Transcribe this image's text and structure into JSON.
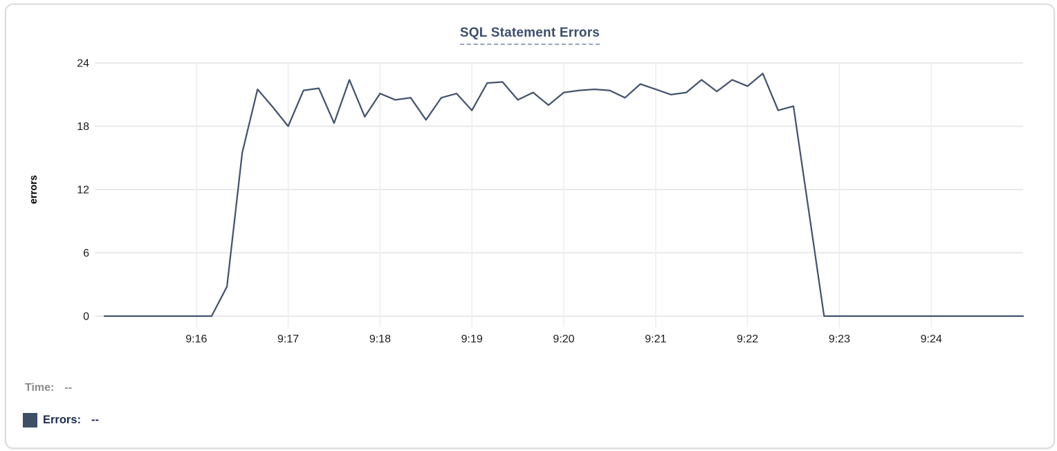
{
  "chart_data": {
    "type": "line",
    "title": "SQL Statement Errors",
    "xlabel": "",
    "ylabel": "errors",
    "ylim": [
      0,
      24
    ],
    "y_ticks": [
      0,
      6,
      12,
      18,
      24
    ],
    "xlim": [
      "9:15:00",
      "9:25:00"
    ],
    "x_ticks": [
      "9:16",
      "9:17",
      "9:18",
      "9:19",
      "9:20",
      "9:21",
      "9:22",
      "9:23",
      "9:24"
    ],
    "grid": true,
    "legend_position": "bottom-left",
    "colors": {
      "line": "#44536e",
      "grid": "#e9e9e9",
      "tick_text": "#1a1a1a",
      "title_text": "#3c4d6e"
    },
    "series": [
      {
        "name": "Errors",
        "color": "#44536e",
        "points": [
          [
            "9:15:00",
            0
          ],
          [
            "9:15:10",
            0
          ],
          [
            "9:15:20",
            0
          ],
          [
            "9:15:30",
            0
          ],
          [
            "9:15:40",
            0
          ],
          [
            "9:15:50",
            0
          ],
          [
            "9:16:00",
            0
          ],
          [
            "9:16:10",
            0
          ],
          [
            "9:16:20",
            2.8
          ],
          [
            "9:16:30",
            15.5
          ],
          [
            "9:16:40",
            21.5
          ],
          [
            "9:16:50",
            19.8
          ],
          [
            "9:17:00",
            18
          ],
          [
            "9:17:10",
            21.4
          ],
          [
            "9:17:20",
            21.6
          ],
          [
            "9:17:30",
            18.3
          ],
          [
            "9:17:40",
            22.4
          ],
          [
            "9:17:50",
            18.9
          ],
          [
            "9:18:00",
            21.1
          ],
          [
            "9:18:10",
            20.5
          ],
          [
            "9:18:20",
            20.7
          ],
          [
            "9:18:30",
            18.6
          ],
          [
            "9:18:40",
            20.7
          ],
          [
            "9:18:50",
            21.1
          ],
          [
            "9:19:00",
            19.5
          ],
          [
            "9:19:10",
            22.1
          ],
          [
            "9:19:20",
            22.2
          ],
          [
            "9:19:30",
            20.5
          ],
          [
            "9:19:40",
            21.2
          ],
          [
            "9:19:50",
            20
          ],
          [
            "9:20:00",
            21.2
          ],
          [
            "9:20:10",
            21.4
          ],
          [
            "9:20:20",
            21.5
          ],
          [
            "9:20:30",
            21.4
          ],
          [
            "9:20:40",
            20.7
          ],
          [
            "9:20:50",
            22
          ],
          [
            "9:21:00",
            21.5
          ],
          [
            "9:21:10",
            21
          ],
          [
            "9:21:20",
            21.2
          ],
          [
            "9:21:30",
            22.4
          ],
          [
            "9:21:40",
            21.3
          ],
          [
            "9:21:50",
            22.4
          ],
          [
            "9:22:00",
            21.8
          ],
          [
            "9:22:10",
            23
          ],
          [
            "9:22:20",
            19.5
          ],
          [
            "9:22:30",
            19.9
          ],
          [
            "9:22:40",
            10
          ],
          [
            "9:22:50",
            0
          ],
          [
            "9:23:00",
            0
          ],
          [
            "9:23:10",
            0
          ],
          [
            "9:23:20",
            0
          ],
          [
            "9:23:30",
            0
          ],
          [
            "9:23:40",
            0
          ],
          [
            "9:23:50",
            0
          ],
          [
            "9:24:00",
            0
          ],
          [
            "9:24:10",
            0
          ],
          [
            "9:24:20",
            0
          ],
          [
            "9:24:30",
            0
          ],
          [
            "9:24:40",
            0
          ],
          [
            "9:24:50",
            0
          ],
          [
            "9:25:00",
            0
          ]
        ]
      }
    ]
  },
  "footer": {
    "time_label": "Time:",
    "time_value": "--",
    "errors_label": "Errors:",
    "errors_value": "--",
    "errors_swatch_color": "#3e4d68"
  }
}
